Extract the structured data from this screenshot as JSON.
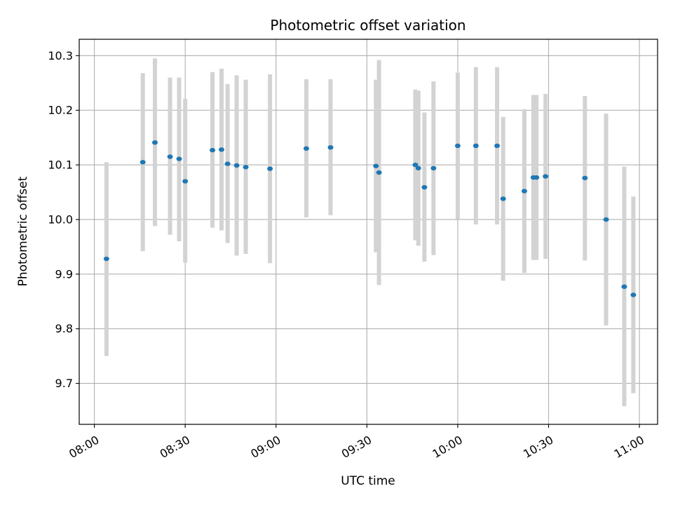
{
  "chart_data": {
    "type": "scatter",
    "title": "Photometric offset variation",
    "xlabel": "UTC time",
    "ylabel": "Photometric offset",
    "grid": true,
    "xlim": [
      "07:55",
      "11:06"
    ],
    "ylim": [
      9.625,
      10.33
    ],
    "x_ticks": [
      "08:00",
      "08:30",
      "09:00",
      "09:30",
      "10:00",
      "10:30",
      "11:00"
    ],
    "y_ticks": [
      9.7,
      9.8,
      9.9,
      10.0,
      10.1,
      10.2,
      10.3
    ],
    "colors": {
      "point": "#1f77b4",
      "errorbar": "#d3d3d3",
      "grid": "#b0b0b0"
    },
    "points": [
      {
        "t": "08:04",
        "y": 9.928,
        "lo": 9.75,
        "hi": 10.105
      },
      {
        "t": "08:16",
        "y": 10.105,
        "lo": 9.942,
        "hi": 10.268
      },
      {
        "t": "08:20",
        "y": 10.141,
        "lo": 9.988,
        "hi": 10.295
      },
      {
        "t": "08:25",
        "y": 10.115,
        "lo": 9.972,
        "hi": 10.26
      },
      {
        "t": "08:28",
        "y": 10.111,
        "lo": 9.96,
        "hi": 10.26
      },
      {
        "t": "08:30",
        "y": 10.07,
        "lo": 9.921,
        "hi": 10.221
      },
      {
        "t": "08:39",
        "y": 10.127,
        "lo": 9.985,
        "hi": 10.27
      },
      {
        "t": "08:42",
        "y": 10.128,
        "lo": 9.98,
        "hi": 10.276
      },
      {
        "t": "08:44",
        "y": 10.102,
        "lo": 9.957,
        "hi": 10.248
      },
      {
        "t": "08:47",
        "y": 10.099,
        "lo": 9.934,
        "hi": 10.264
      },
      {
        "t": "08:50",
        "y": 10.096,
        "lo": 9.937,
        "hi": 10.256
      },
      {
        "t": "08:58",
        "y": 10.093,
        "lo": 9.92,
        "hi": 10.266
      },
      {
        "t": "09:10",
        "y": 10.13,
        "lo": 10.004,
        "hi": 10.257
      },
      {
        "t": "09:18",
        "y": 10.132,
        "lo": 10.008,
        "hi": 10.257
      },
      {
        "t": "09:33",
        "y": 10.098,
        "lo": 9.94,
        "hi": 10.256
      },
      {
        "t": "09:34",
        "y": 10.086,
        "lo": 9.88,
        "hi": 10.292
      },
      {
        "t": "09:46",
        "y": 10.1,
        "lo": 9.962,
        "hi": 10.238
      },
      {
        "t": "09:47",
        "y": 10.094,
        "lo": 9.952,
        "hi": 10.236
      },
      {
        "t": "09:49",
        "y": 10.059,
        "lo": 9.923,
        "hi": 10.196
      },
      {
        "t": "09:52",
        "y": 10.094,
        "lo": 9.935,
        "hi": 10.253
      },
      {
        "t": "10:00",
        "y": 10.135,
        "lo": 10.001,
        "hi": 10.269
      },
      {
        "t": "10:06",
        "y": 10.135,
        "lo": 9.991,
        "hi": 10.279
      },
      {
        "t": "10:13",
        "y": 10.135,
        "lo": 9.991,
        "hi": 10.279
      },
      {
        "t": "10:15",
        "y": 10.038,
        "lo": 9.888,
        "hi": 10.188
      },
      {
        "t": "10:22",
        "y": 10.052,
        "lo": 9.902,
        "hi": 10.202
      },
      {
        "t": "10:25",
        "y": 10.077,
        "lo": 9.926,
        "hi": 10.228
      },
      {
        "t": "10:26",
        "y": 10.077,
        "lo": 9.926,
        "hi": 10.228
      },
      {
        "t": "10:29",
        "y": 10.079,
        "lo": 9.928,
        "hi": 10.23
      },
      {
        "t": "10:42",
        "y": 10.076,
        "lo": 9.925,
        "hi": 10.226
      },
      {
        "t": "10:49",
        "y": 10.0,
        "lo": 9.806,
        "hi": 10.194
      },
      {
        "t": "10:55",
        "y": 9.877,
        "lo": 9.658,
        "hi": 10.097
      },
      {
        "t": "10:58",
        "y": 9.862,
        "lo": 9.682,
        "hi": 10.042
      }
    ]
  }
}
